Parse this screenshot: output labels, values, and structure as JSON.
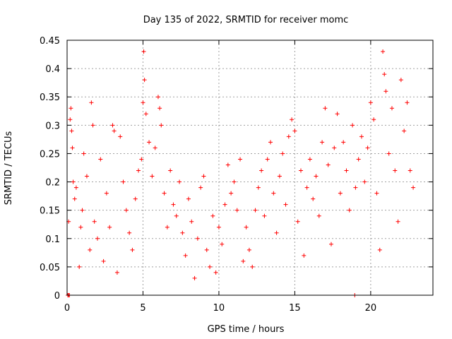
{
  "chart_data": {
    "type": "scatter",
    "title": "Day 135 of 2022, SRMTID for receiver momc",
    "xlabel": "GPS time / hours",
    "ylabel": "SRMTID / TECUs",
    "xlim": [
      0,
      24.1
    ],
    "ylim": [
      0,
      0.45
    ],
    "x_ticks": [
      0,
      5,
      10,
      15,
      20
    ],
    "x_tick_labels": [
      "0",
      "5",
      "10",
      "15",
      "20"
    ],
    "y_ticks": [
      0,
      0.05,
      0.1,
      0.15,
      0.2,
      0.25,
      0.3,
      0.35,
      0.4,
      0.45
    ],
    "y_tick_labels": [
      "0",
      "0.05",
      "0.1",
      "0.15",
      "0.2",
      "0.25",
      "0.3",
      "0.35",
      "0.4",
      "0.45"
    ],
    "grid": true,
    "marker": "+",
    "color": "#ff0000",
    "series": [
      {
        "name": "SRMTID",
        "points": [
          [
            0.05,
            0.0
          ],
          [
            0.1,
            0.0
          ],
          [
            0.15,
            0.0
          ],
          [
            18.95,
            0.0
          ],
          [
            0.1,
            0.13
          ],
          [
            0.2,
            0.31
          ],
          [
            0.25,
            0.33
          ],
          [
            0.3,
            0.29
          ],
          [
            0.35,
            0.26
          ],
          [
            0.4,
            0.2
          ],
          [
            0.5,
            0.17
          ],
          [
            0.6,
            0.19
          ],
          [
            0.8,
            0.05
          ],
          [
            0.9,
            0.12
          ],
          [
            1.0,
            0.15
          ],
          [
            1.1,
            0.25
          ],
          [
            1.3,
            0.21
          ],
          [
            1.5,
            0.08
          ],
          [
            1.6,
            0.34
          ],
          [
            1.7,
            0.3
          ],
          [
            1.8,
            0.13
          ],
          [
            2.0,
            0.1
          ],
          [
            2.2,
            0.24
          ],
          [
            2.4,
            0.06
          ],
          [
            2.6,
            0.18
          ],
          [
            2.8,
            0.12
          ],
          [
            3.0,
            0.3
          ],
          [
            3.1,
            0.29
          ],
          [
            3.3,
            0.04
          ],
          [
            3.5,
            0.28
          ],
          [
            3.7,
            0.2
          ],
          [
            3.9,
            0.15
          ],
          [
            4.1,
            0.11
          ],
          [
            4.3,
            0.08
          ],
          [
            4.5,
            0.17
          ],
          [
            4.7,
            0.22
          ],
          [
            4.9,
            0.24
          ],
          [
            5.0,
            0.34
          ],
          [
            5.05,
            0.43
          ],
          [
            5.1,
            0.38
          ],
          [
            5.2,
            0.32
          ],
          [
            5.4,
            0.27
          ],
          [
            5.6,
            0.21
          ],
          [
            5.8,
            0.26
          ],
          [
            6.0,
            0.35
          ],
          [
            6.1,
            0.33
          ],
          [
            6.2,
            0.3
          ],
          [
            6.4,
            0.18
          ],
          [
            6.6,
            0.12
          ],
          [
            6.8,
            0.22
          ],
          [
            7.0,
            0.16
          ],
          [
            7.2,
            0.14
          ],
          [
            7.4,
            0.2
          ],
          [
            7.6,
            0.11
          ],
          [
            7.8,
            0.07
          ],
          [
            8.0,
            0.17
          ],
          [
            8.2,
            0.13
          ],
          [
            8.4,
            0.03
          ],
          [
            8.6,
            0.1
          ],
          [
            8.8,
            0.19
          ],
          [
            9.0,
            0.21
          ],
          [
            9.2,
            0.08
          ],
          [
            9.4,
            0.05
          ],
          [
            9.6,
            0.14
          ],
          [
            9.8,
            0.04
          ],
          [
            10.0,
            0.12
          ],
          [
            10.2,
            0.09
          ],
          [
            10.4,
            0.16
          ],
          [
            10.6,
            0.23
          ],
          [
            10.8,
            0.18
          ],
          [
            11.0,
            0.2
          ],
          [
            11.2,
            0.15
          ],
          [
            11.4,
            0.24
          ],
          [
            11.6,
            0.06
          ],
          [
            11.8,
            0.12
          ],
          [
            12.0,
            0.08
          ],
          [
            12.2,
            0.05
          ],
          [
            12.4,
            0.15
          ],
          [
            12.6,
            0.19
          ],
          [
            12.8,
            0.22
          ],
          [
            13.0,
            0.14
          ],
          [
            13.2,
            0.24
          ],
          [
            13.4,
            0.27
          ],
          [
            13.6,
            0.18
          ],
          [
            13.8,
            0.11
          ],
          [
            14.0,
            0.21
          ],
          [
            14.2,
            0.25
          ],
          [
            14.4,
            0.16
          ],
          [
            14.6,
            0.28
          ],
          [
            14.8,
            0.31
          ],
          [
            15.0,
            0.29
          ],
          [
            15.2,
            0.13
          ],
          [
            15.4,
            0.22
          ],
          [
            15.6,
            0.07
          ],
          [
            15.8,
            0.19
          ],
          [
            16.0,
            0.24
          ],
          [
            16.2,
            0.17
          ],
          [
            16.4,
            0.21
          ],
          [
            16.6,
            0.14
          ],
          [
            16.8,
            0.27
          ],
          [
            17.0,
            0.33
          ],
          [
            17.2,
            0.23
          ],
          [
            17.4,
            0.09
          ],
          [
            17.6,
            0.26
          ],
          [
            17.8,
            0.32
          ],
          [
            18.0,
            0.18
          ],
          [
            18.2,
            0.27
          ],
          [
            18.4,
            0.22
          ],
          [
            18.6,
            0.15
          ],
          [
            18.8,
            0.3
          ],
          [
            19.0,
            0.19
          ],
          [
            19.2,
            0.24
          ],
          [
            19.4,
            0.28
          ],
          [
            19.6,
            0.2
          ],
          [
            19.8,
            0.26
          ],
          [
            20.0,
            0.34
          ],
          [
            20.2,
            0.31
          ],
          [
            20.4,
            0.18
          ],
          [
            20.6,
            0.08
          ],
          [
            20.8,
            0.43
          ],
          [
            20.9,
            0.39
          ],
          [
            21.0,
            0.36
          ],
          [
            21.2,
            0.25
          ],
          [
            21.4,
            0.33
          ],
          [
            21.6,
            0.22
          ],
          [
            21.8,
            0.13
          ],
          [
            22.0,
            0.38
          ],
          [
            22.2,
            0.29
          ],
          [
            22.4,
            0.34
          ],
          [
            22.6,
            0.22
          ],
          [
            22.8,
            0.19
          ]
        ]
      }
    ]
  }
}
